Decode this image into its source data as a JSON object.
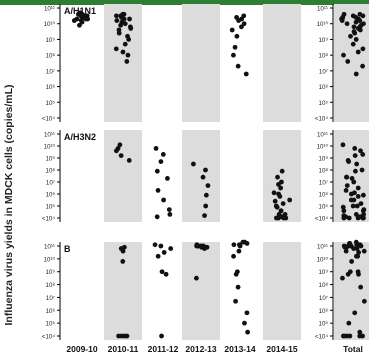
{
  "chart_data": {
    "type": "scatter",
    "ylabel": "Influenza virus yields in MDCK cells (copies/mL)",
    "categories": [
      "2009-10",
      "2010-11",
      "2011-12",
      "2012-13",
      "2013-14",
      "2014-15",
      "Total"
    ],
    "shaded_categories": [
      "2010-11",
      "2012-13",
      "2014-15",
      "Total"
    ],
    "y_scale": "log",
    "ylim": [
      "<10^4",
      "10^11"
    ],
    "y_tick_labels": [
      "10¹¹",
      "10¹⁰",
      "10⁹",
      "10⁸",
      "10⁷",
      "10⁶",
      "10⁵",
      "<10⁴"
    ],
    "panels": [
      {
        "name": "A/H1N1",
        "series": [
          {
            "category": "2009-10",
            "log10_values": [
              10.3,
              10.5,
              10.4,
              10.2,
              10.6,
              10.5,
              10.3,
              10.1,
              10.4,
              10.6,
              10.2,
              10.5,
              10.4,
              10.7,
              10.3,
              9.9,
              10.5
            ]
          },
          {
            "category": "2010-11",
            "log10_values": [
              10.6,
              10.5,
              10.4,
              10.3,
              10.2,
              10.0,
              9.8,
              9.6,
              9.4,
              9.2,
              9.0,
              8.7,
              8.4,
              8.2,
              8.0,
              7.6,
              10.5,
              10.1,
              9.7,
              10.3,
              10.6,
              9.9
            ]
          },
          {
            "category": "2011-12",
            "log10_values": []
          },
          {
            "category": "2012-13",
            "log10_values": []
          },
          {
            "category": "2013-14",
            "log10_values": [
              10.5,
              10.3,
              10.0,
              9.8,
              9.2,
              8.5,
              8.0,
              7.3,
              6.8,
              10.2,
              10.4,
              9.6
            ]
          },
          {
            "category": "2014-15",
            "log10_values": []
          },
          {
            "category": "Total",
            "log10_values": [
              10.6,
              10.5,
              10.4,
              10.3,
              10.3,
              10.2,
              10.1,
              10.0,
              9.9,
              9.8,
              9.7,
              9.6,
              9.4,
              9.2,
              9.0,
              8.7,
              8.4,
              8.2,
              8.0,
              7.6,
              7.3,
              6.8,
              10.5,
              10.4,
              10.6,
              10.4,
              10.2,
              10.0,
              9.8,
              9.5
            ]
          }
        ]
      },
      {
        "name": "A/H3N2",
        "series": [
          {
            "category": "2009-10",
            "log10_values": []
          },
          {
            "category": "2010-11",
            "log10_values": [
              10.1,
              9.8,
              9.6,
              9.2,
              8.8
            ]
          },
          {
            "category": "2011-12",
            "log10_values": [
              9.8,
              9.3,
              8.7,
              7.9,
              7.3,
              6.3,
              5.5,
              4.7,
              4.3,
              4.1
            ]
          },
          {
            "category": "2012-13",
            "log10_values": [
              8.5,
              8.0,
              7.4,
              6.7,
              5.9,
              5.0,
              4.2
            ]
          },
          {
            "category": "2013-14",
            "log10_values": []
          },
          {
            "category": "2014-15",
            "log10_values": [
              7.9,
              7.4,
              7.0,
              6.5,
              6.1,
              5.8,
              5.5,
              5.2,
              4.9,
              4.6,
              4.3,
              4.1,
              4.0,
              4.0,
              4.0,
              4.0,
              4.1,
              4.3,
              4.6,
              5.0,
              5.4,
              6.0,
              6.8
            ]
          },
          {
            "category": "Total",
            "log10_values": [
              10.1,
              9.8,
              9.6,
              9.3,
              9.2,
              8.8,
              8.7,
              8.5,
              8.0,
              7.9,
              7.4,
              7.4,
              7.3,
              7.0,
              6.7,
              6.5,
              6.3,
              6.1,
              5.9,
              5.8,
              5.5,
              5.5,
              5.2,
              5.0,
              4.9,
              4.7,
              4.6,
              4.3,
              4.2,
              4.1,
              4.0,
              4.0,
              4.0,
              4.0,
              4.0,
              4.1,
              4.3,
              4.6,
              5.0,
              6.0
            ]
          }
        ]
      },
      {
        "name": "B",
        "series": [
          {
            "category": "2009-10",
            "log10_values": []
          },
          {
            "category": "2010-11",
            "log10_values": [
              10.9,
              10.8,
              10.6,
              9.8,
              4.0,
              4.0,
              4.0,
              4.0
            ]
          },
          {
            "category": "2011-12",
            "log10_values": [
              11.1,
              11.0,
              10.8,
              10.5,
              10.2,
              9.0,
              8.8,
              4.0
            ]
          },
          {
            "category": "2012-13",
            "log10_values": [
              11.0,
              11.0,
              11.0,
              11.0,
              10.9,
              10.9,
              11.0,
              11.1,
              11.0,
              10.9,
              11.0,
              10.8,
              8.5
            ]
          },
          {
            "category": "2013-14",
            "log10_values": [
              11.3,
              11.2,
              11.1,
              11.0,
              10.6,
              10.2,
              9.0,
              7.8,
              6.7,
              5.8,
              5.0,
              4.3,
              8.8,
              11.3,
              11.1
            ]
          },
          {
            "category": "2014-15",
            "log10_values": []
          },
          {
            "category": "Total",
            "log10_values": [
              11.3,
              11.2,
              11.2,
              11.1,
              11.1,
              11.0,
              11.0,
              11.0,
              11.0,
              11.0,
              10.9,
              10.9,
              10.8,
              10.8,
              10.6,
              10.6,
              10.5,
              10.2,
              10.2,
              9.8,
              9.0,
              9.0,
              8.8,
              8.8,
              8.5,
              7.8,
              6.7,
              5.8,
              5.0,
              4.3,
              4.0,
              4.0,
              4.0,
              4.0,
              4.0,
              4.0
            ]
          }
        ]
      }
    ]
  }
}
